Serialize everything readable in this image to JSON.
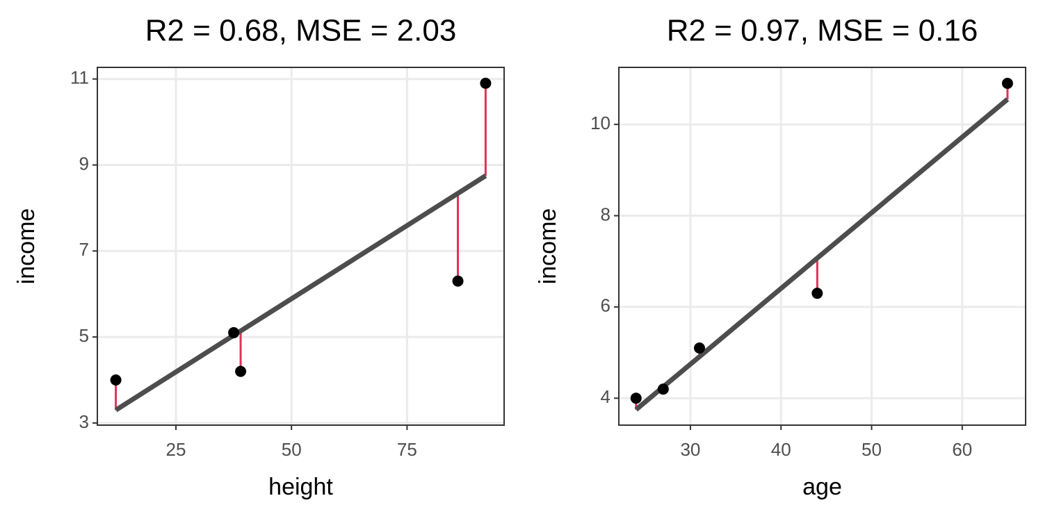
{
  "chart_data": [
    {
      "type": "scatter",
      "title": "R2 = 0.68, MSE = 2.03",
      "xlabel": "height",
      "ylabel": "income",
      "x": [
        12,
        37.5,
        39,
        86,
        92
      ],
      "values": [
        4.0,
        5.1,
        4.2,
        6.3,
        10.9
      ],
      "fitted": [
        3.3,
        5.04,
        5.14,
        8.34,
        8.75
      ],
      "color": "#000000",
      "line_color": "#4d4d4d",
      "residual_color": "#e0325a",
      "xlim": [
        8,
        96
      ],
      "xticks": [
        25,
        50,
        75
      ],
      "ylim": [
        2.95,
        11.27
      ],
      "yticks": [
        3,
        5,
        7,
        9,
        11
      ],
      "grid": true
    },
    {
      "type": "scatter",
      "title": "R2 = 0.97, MSE = 0.16",
      "xlabel": "age",
      "ylabel": "income",
      "x": [
        24,
        27,
        31,
        44,
        65
      ],
      "values": [
        4.0,
        4.2,
        5.1,
        6.3,
        10.9
      ],
      "fitted": [
        3.75,
        4.25,
        4.91,
        7.07,
        10.55
      ],
      "color": "#000000",
      "line_color": "#4d4d4d",
      "residual_color": "#e0325a",
      "xlim": [
        22.1,
        67
      ],
      "xticks": [
        30,
        40,
        50,
        60
      ],
      "ylim": [
        3.41,
        11.25
      ],
      "yticks": [
        4,
        6,
        8,
        10
      ],
      "grid": true
    }
  ]
}
